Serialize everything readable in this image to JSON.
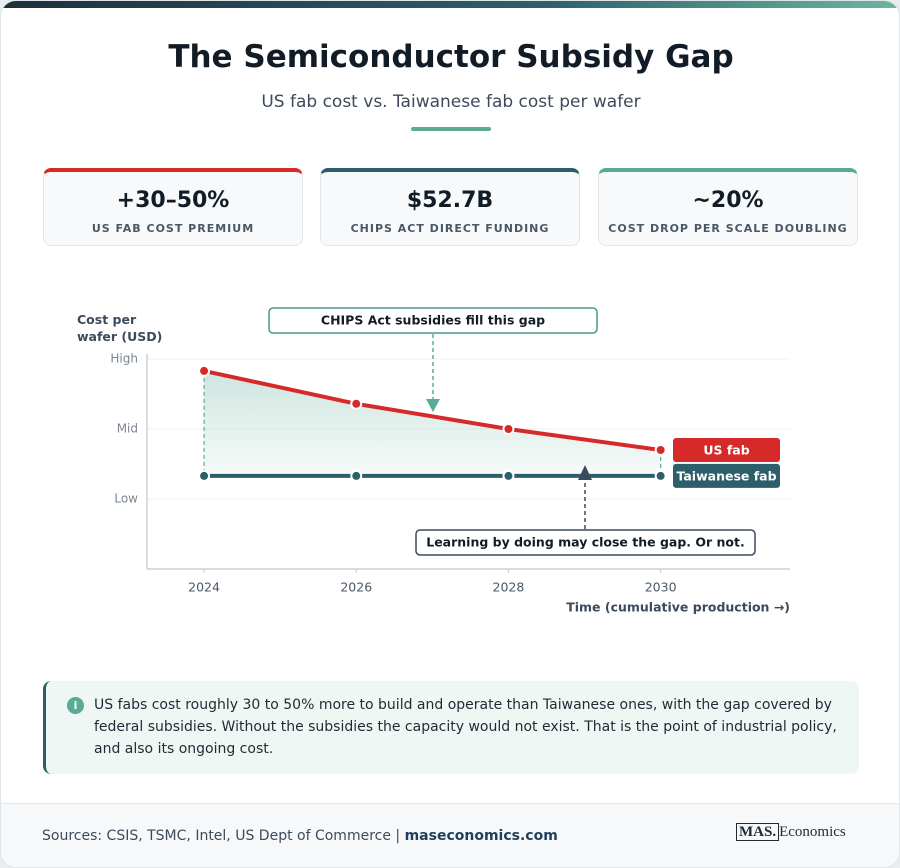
{
  "header": {
    "title": "The Semiconductor Subsidy Gap",
    "subtitle": "US fab cost vs. Taiwanese fab cost per wafer"
  },
  "stats": [
    {
      "value": "+30–50%",
      "label": "US FAB COST PREMIUM"
    },
    {
      "value": "$52.7B",
      "label": "CHIPS ACT DIRECT FUNDING"
    },
    {
      "value": "~20%",
      "label": "COST DROP PER SCALE DOUBLING"
    }
  ],
  "chart_data": {
    "type": "line",
    "y_label": "Cost per wafer (USD)",
    "x_label": "Time (cumulative production →)",
    "x": [
      2024,
      2026,
      2028,
      2030
    ],
    "xlim": [
      2023.25,
      2031.7
    ],
    "xticks": [
      2024,
      2026,
      2028,
      2030
    ],
    "ylim": [
      0,
      3
    ],
    "yticks": [
      {
        "value": 1,
        "label": "Low"
      },
      {
        "value": 2,
        "label": "Mid"
      },
      {
        "value": 3,
        "label": "High"
      }
    ],
    "grid": true,
    "series": [
      {
        "name": "US fab",
        "color": "#d62a2a",
        "values": [
          2.83,
          2.36,
          2.0,
          1.7
        ]
      },
      {
        "name": "Taiwanese fab",
        "color": "#2d5f6b",
        "values": [
          1.33,
          1.33,
          1.33,
          1.33
        ]
      }
    ],
    "annotations": [
      "CHIPS Act subsidies fill this gap",
      "Learning by doing may close the gap. Or not."
    ]
  },
  "note": "US fabs cost roughly 30 to 50% more to build and operate than Taiwanese ones, with the gap covered by federal subsidies. Without the subsidies the capacity would not exist. That is the point of industrial policy, and also its ongoing cost.",
  "footer": {
    "sources": "Sources: CSIS, TSMC, Intel, US Dept of Commerce |",
    "site": "maseconomics.com",
    "logo": [
      "MAS.",
      "Economics"
    ]
  }
}
